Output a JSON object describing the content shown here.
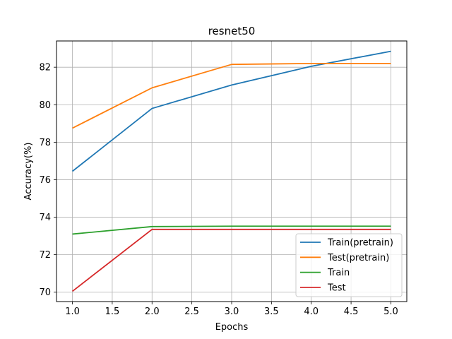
{
  "chart_data": {
    "type": "line",
    "title": "resnet50",
    "xlabel": "Epochs",
    "ylabel": "Accuracy(%)",
    "x": [
      1.0,
      2.0,
      3.0,
      4.0,
      5.0
    ],
    "xlim": [
      0.8,
      5.2
    ],
    "ylim": [
      69.5,
      83.4
    ],
    "xticks": [
      1.0,
      1.5,
      2.0,
      2.5,
      3.0,
      3.5,
      4.0,
      4.5,
      5.0
    ],
    "xtick_labels": [
      "1.0",
      "1.5",
      "2.0",
      "2.5",
      "3.0",
      "3.5",
      "4.0",
      "4.5",
      "5.0"
    ],
    "yticks": [
      70,
      72,
      74,
      76,
      78,
      80,
      82
    ],
    "ytick_labels": [
      "70",
      "72",
      "74",
      "76",
      "78",
      "80",
      "82"
    ],
    "grid": true,
    "legend_position": "lower-right",
    "series": [
      {
        "name": "Train(pretrain)",
        "color": "#1f77b4",
        "values": [
          76.45,
          79.8,
          81.05,
          82.05,
          82.85
        ]
      },
      {
        "name": "Test(pretrain)",
        "color": "#ff7f0e",
        "values": [
          78.75,
          80.9,
          82.15,
          82.2,
          82.2
        ]
      },
      {
        "name": "Train",
        "color": "#2ca02c",
        "values": [
          73.1,
          73.5,
          73.52,
          73.52,
          73.52
        ]
      },
      {
        "name": "Test",
        "color": "#d62728",
        "values": [
          70.05,
          73.35,
          73.35,
          73.35,
          73.35
        ]
      }
    ]
  }
}
